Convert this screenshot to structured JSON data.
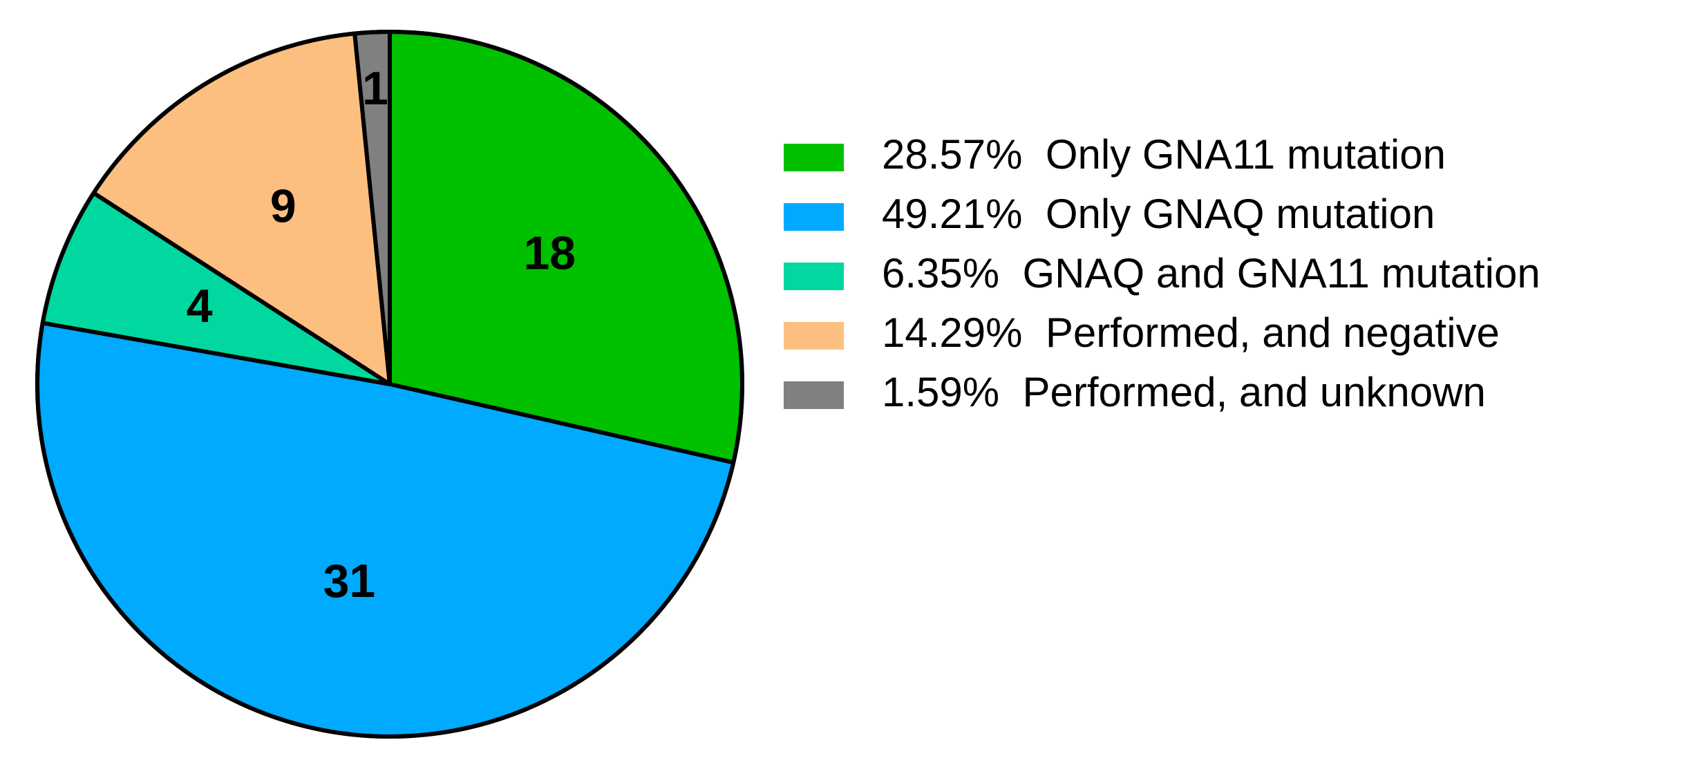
{
  "chart_data": {
    "type": "pie",
    "categories": [
      "28.57%  Only GNA11 mutation",
      "49.21%  Only GNAQ mutation",
      "6.35%  GNAQ and GNA11 mutation",
      "14.29%  Performed, and negative",
      "1.59%  Performed, and unknown"
    ],
    "values": [
      18,
      31,
      4,
      9,
      1
    ],
    "colors": [
      "#00c000",
      "#00aaff",
      "#00d8a0",
      "#fdbf80",
      "#808080"
    ],
    "legend": "right"
  }
}
